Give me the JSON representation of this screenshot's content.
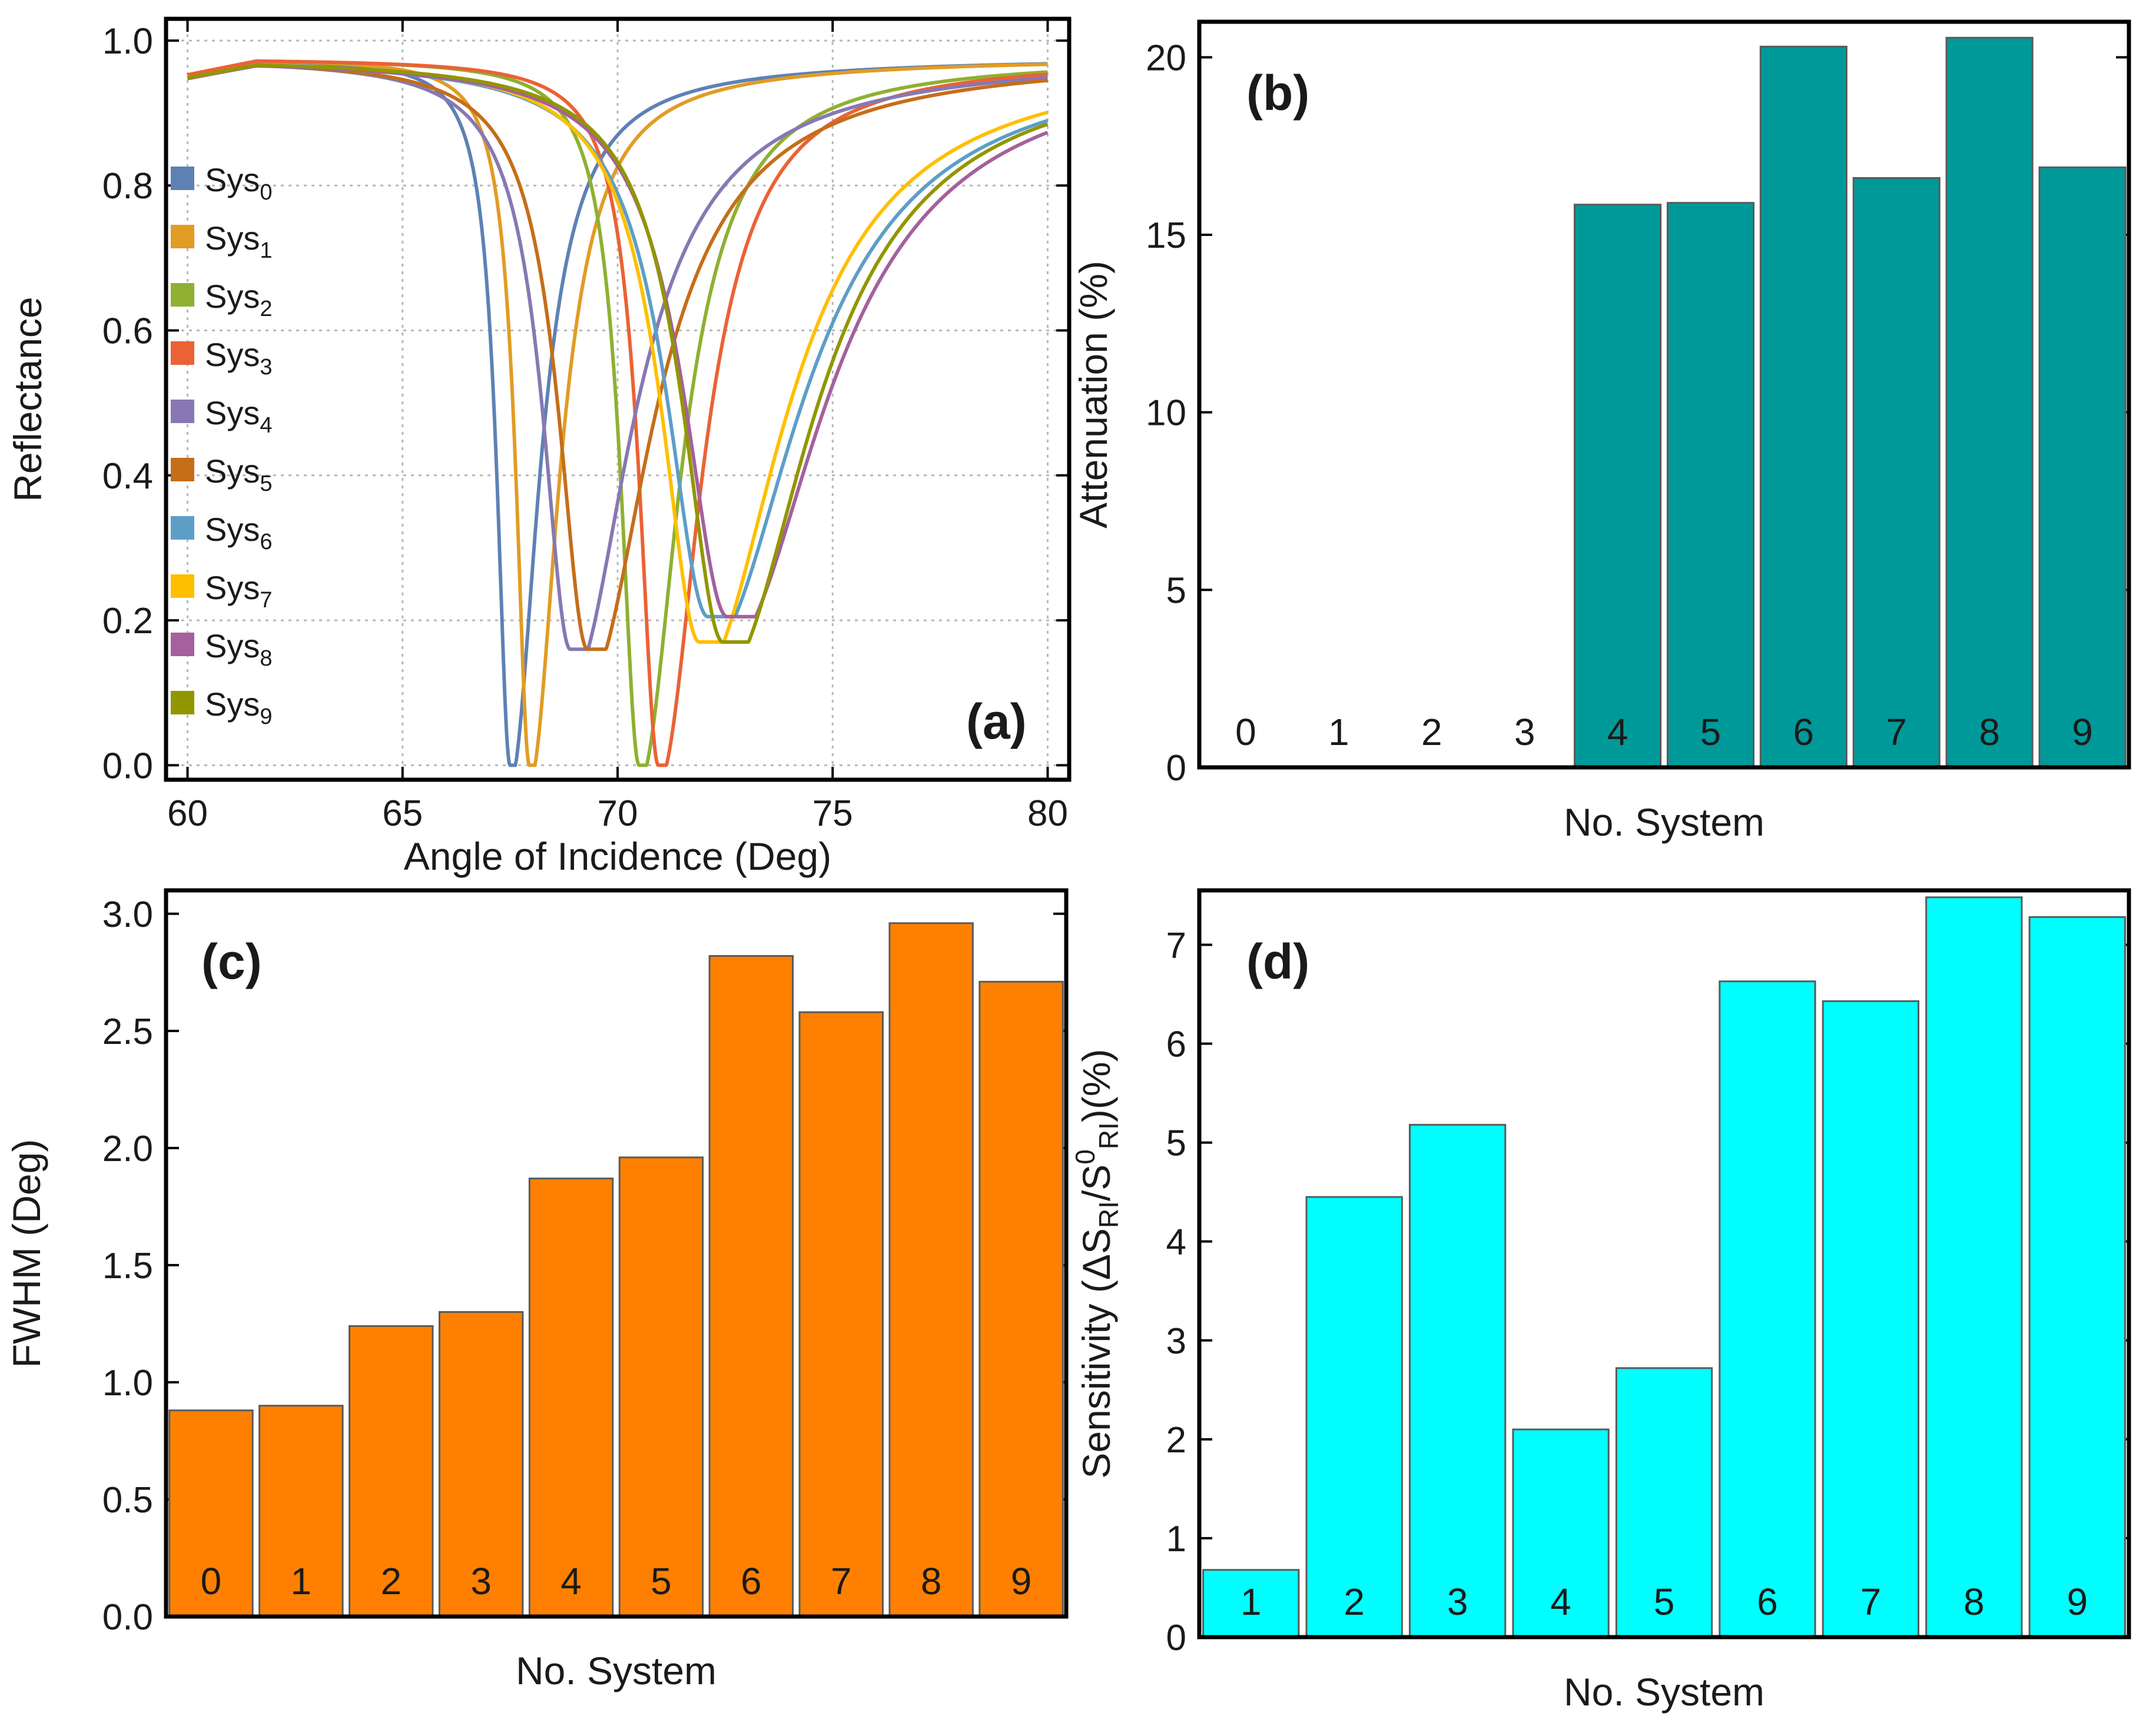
{
  "chart_data": [
    {
      "id": "a",
      "type": "line",
      "panel_label": "(a)",
      "xlabel": "Angle of Incidence (Deg)",
      "ylabel": "Reflectance",
      "xlim": [
        59.5,
        80.5
      ],
      "ylim": [
        -0.02,
        1.03
      ],
      "xticks": [
        60,
        65,
        70,
        75,
        80
      ],
      "yticks": [
        0.0,
        0.2,
        0.4,
        0.6,
        0.8,
        1.0
      ],
      "ytick_labels": [
        "0.0",
        "0.2",
        "0.4",
        "0.6",
        "0.8",
        "1.0"
      ],
      "grid": true,
      "legend_position": "left",
      "series": [
        {
          "name": "Sys",
          "sub": "0",
          "color": "#5e81b5",
          "dip_angle": 67.5,
          "min_reflectance": 0.0,
          "width_deg": 0.88
        },
        {
          "name": "Sys",
          "sub": "1",
          "color": "#e19c24",
          "dip_angle": 67.95,
          "min_reflectance": 0.0,
          "width_deg": 0.9
        },
        {
          "name": "Sys",
          "sub": "2",
          "color": "#8fb032",
          "dip_angle": 70.5,
          "min_reflectance": 0.0,
          "width_deg": 1.24
        },
        {
          "name": "Sys",
          "sub": "3",
          "color": "#eb6235",
          "dip_angle": 70.95,
          "min_reflectance": 0.0,
          "width_deg": 1.3
        },
        {
          "name": "Sys",
          "sub": "4",
          "color": "#8778b3",
          "dip_angle": 68.9,
          "min_reflectance": 0.16,
          "width_deg": 1.87
        },
        {
          "name": "Sys",
          "sub": "5",
          "color": "#c56e1a",
          "dip_angle": 69.3,
          "min_reflectance": 0.16,
          "width_deg": 1.96
        },
        {
          "name": "Sys",
          "sub": "6",
          "color": "#5d9ec7",
          "dip_angle": 72.1,
          "min_reflectance": 0.205,
          "width_deg": 2.82
        },
        {
          "name": "Sys",
          "sub": "7",
          "color": "#ffbf00",
          "dip_angle": 71.9,
          "min_reflectance": 0.17,
          "width_deg": 2.58
        },
        {
          "name": "Sys",
          "sub": "8",
          "color": "#a5609d",
          "dip_angle": 72.55,
          "min_reflectance": 0.205,
          "width_deg": 2.96
        },
        {
          "name": "Sys",
          "sub": "9",
          "color": "#929600",
          "dip_angle": 72.45,
          "min_reflectance": 0.17,
          "width_deg": 2.71
        }
      ]
    },
    {
      "id": "b",
      "type": "bar",
      "panel_label": "(b)",
      "xlabel": "No. System",
      "ylabel": "Attenuation (%)",
      "ylim": [
        0,
        21
      ],
      "yticks": [
        0,
        5,
        10,
        15,
        20
      ],
      "ytick_labels": [
        "0",
        "5",
        "10",
        "15",
        "20"
      ],
      "bar_color": "#009999",
      "categories": [
        "0",
        "1",
        "2",
        "3",
        "4",
        "5",
        "6",
        "7",
        "8",
        "9"
      ],
      "values": [
        0,
        0,
        0,
        0,
        15.85,
        15.9,
        20.3,
        16.6,
        20.55,
        16.9
      ]
    },
    {
      "id": "c",
      "type": "bar",
      "panel_label": "(c)",
      "xlabel": "No. System",
      "ylabel": "FWHM (Deg)",
      "ylim": [
        0,
        3.1
      ],
      "yticks": [
        0.0,
        0.5,
        1.0,
        1.5,
        2.0,
        2.5,
        3.0
      ],
      "ytick_labels": [
        "0.0",
        "0.5",
        "1.0",
        "1.5",
        "2.0",
        "2.5",
        "3.0"
      ],
      "bar_color": "#ff8000",
      "categories": [
        "0",
        "1",
        "2",
        "3",
        "4",
        "5",
        "6",
        "7",
        "8",
        "9"
      ],
      "values": [
        0.88,
        0.9,
        1.24,
        1.3,
        1.87,
        1.96,
        2.82,
        2.58,
        2.96,
        2.71
      ]
    },
    {
      "id": "d",
      "type": "bar",
      "panel_label": "(d)",
      "xlabel": "No. System",
      "ylabel": "Sensitivity (ΔS",
      "ylabel_sub1": "RI",
      "ylabel_mid": "/S",
      "ylabel_sup": "0",
      "ylabel_sub2": "RI",
      "ylabel_end": ")(%)",
      "ylim": [
        0,
        7.55
      ],
      "yticks": [
        0,
        1,
        2,
        3,
        4,
        5,
        6,
        7
      ],
      "ytick_labels": [
        "0",
        "1",
        "2",
        "3",
        "4",
        "5",
        "6",
        "7"
      ],
      "bar_color": "#00ffff",
      "categories": [
        "1",
        "2",
        "3",
        "4",
        "5",
        "6",
        "7",
        "8",
        "9"
      ],
      "values": [
        0.68,
        4.45,
        5.18,
        2.1,
        2.72,
        6.63,
        6.43,
        7.48,
        7.28
      ]
    }
  ]
}
